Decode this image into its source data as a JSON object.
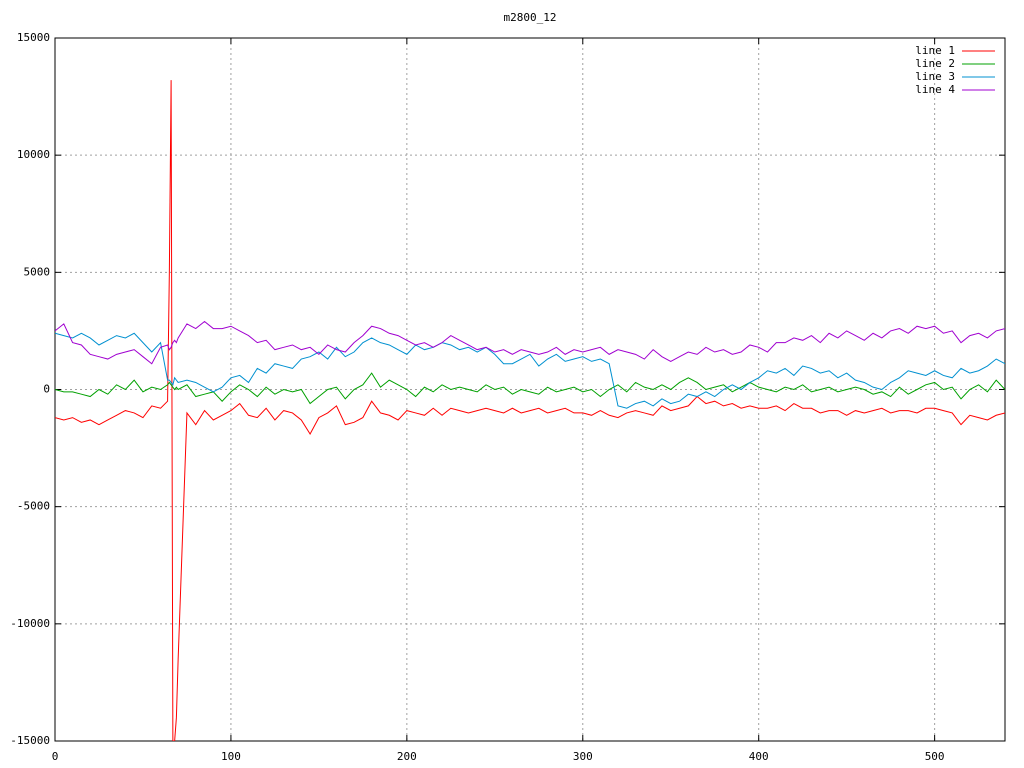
{
  "chart_data": {
    "type": "line",
    "title": "m2800_12",
    "x": [
      0,
      5,
      10,
      15,
      20,
      25,
      30,
      35,
      40,
      45,
      50,
      55,
      60,
      64,
      65,
      66,
      67,
      68,
      69,
      70,
      75,
      80,
      85,
      90,
      95,
      100,
      105,
      110,
      115,
      120,
      125,
      130,
      135,
      140,
      145,
      150,
      155,
      160,
      165,
      170,
      175,
      180,
      185,
      190,
      195,
      200,
      205,
      210,
      215,
      220,
      225,
      230,
      235,
      240,
      245,
      250,
      255,
      260,
      265,
      270,
      275,
      280,
      285,
      290,
      295,
      300,
      305,
      310,
      315,
      320,
      325,
      330,
      335,
      340,
      345,
      350,
      355,
      360,
      365,
      370,
      375,
      380,
      385,
      390,
      395,
      400,
      405,
      410,
      415,
      420,
      425,
      430,
      435,
      440,
      445,
      450,
      455,
      460,
      465,
      470,
      475,
      480,
      485,
      490,
      495,
      500,
      505,
      510,
      515,
      520,
      525,
      530,
      535,
      540
    ],
    "series": [
      {
        "name": "line 1",
        "color": "#ff0000",
        "values": [
          -1200,
          -1300,
          -1200,
          -1400,
          -1300,
          -1500,
          -1300,
          -1100,
          -900,
          -1000,
          -1200,
          -700,
          -800,
          -500,
          5000,
          13200,
          -15000,
          -15000,
          -14000,
          -11500,
          -1000,
          -1500,
          -900,
          -1300,
          -1100,
          -900,
          -600,
          -1100,
          -1200,
          -800,
          -1300,
          -900,
          -1000,
          -1300,
          -1900,
          -1200,
          -1000,
          -700,
          -1500,
          -1400,
          -1200,
          -500,
          -1000,
          -1100,
          -1300,
          -900,
          -1000,
          -1100,
          -800,
          -1100,
          -800,
          -900,
          -1000,
          -900,
          -800,
          -900,
          -1000,
          -800,
          -1000,
          -900,
          -800,
          -1000,
          -900,
          -800,
          -1000,
          -1000,
          -1100,
          -900,
          -1100,
          -1200,
          -1000,
          -900,
          -1000,
          -1100,
          -700,
          -900,
          -800,
          -700,
          -300,
          -600,
          -500,
          -700,
          -600,
          -800,
          -700,
          -800,
          -800,
          -700,
          -900,
          -600,
          -800,
          -800,
          -1000,
          -900,
          -900,
          -1100,
          -900,
          -1000,
          -900,
          -800,
          -1000,
          -900,
          -900,
          -1000,
          -800,
          -800,
          -900,
          -1000,
          -1500,
          -1100,
          -1200,
          -1300,
          -1100,
          -1000
        ]
      },
      {
        "name": "line 2",
        "color": "#00a000",
        "values": [
          0,
          -100,
          -100,
          -200,
          -300,
          0,
          -200,
          200,
          0,
          400,
          -100,
          100,
          0,
          200,
          300,
          200,
          100,
          0,
          100,
          0,
          200,
          -300,
          -200,
          -100,
          -500,
          -100,
          200,
          0,
          -300,
          100,
          -200,
          0,
          -100,
          0,
          -600,
          -300,
          0,
          100,
          -400,
          0,
          200,
          700,
          100,
          400,
          200,
          0,
          -300,
          100,
          -100,
          200,
          0,
          100,
          0,
          -100,
          200,
          0,
          100,
          -200,
          0,
          -100,
          -200,
          100,
          -100,
          0,
          100,
          -100,
          0,
          -300,
          0,
          200,
          -100,
          300,
          100,
          0,
          200,
          0,
          300,
          500,
          300,
          0,
          100,
          200,
          -100,
          100,
          300,
          100,
          0,
          -100,
          100,
          0,
          200,
          -100,
          0,
          100,
          -100,
          0,
          100,
          0,
          -200,
          -100,
          -300,
          100,
          -200,
          0,
          200,
          300,
          0,
          100,
          -400,
          0,
          200,
          -100,
          400,
          0
        ]
      },
      {
        "name": "line 3",
        "color": "#0090d0",
        "values": [
          2400,
          2300,
          2200,
          2400,
          2200,
          1900,
          2100,
          2300,
          2200,
          2400,
          2000,
          1600,
          2000,
          400,
          400,
          300,
          200,
          500,
          400,
          300,
          400,
          300,
          100,
          -100,
          100,
          500,
          600,
          300,
          900,
          700,
          1100,
          1000,
          900,
          1300,
          1400,
          1600,
          1300,
          1800,
          1400,
          1600,
          2000,
          2200,
          2000,
          1900,
          1700,
          1500,
          1900,
          1700,
          1800,
          2000,
          1900,
          1700,
          1800,
          1600,
          1800,
          1500,
          1100,
          1100,
          1300,
          1500,
          1000,
          1300,
          1500,
          1200,
          1300,
          1400,
          1200,
          1300,
          1100,
          -700,
          -800,
          -600,
          -500,
          -700,
          -400,
          -600,
          -500,
          -200,
          -300,
          -100,
          -300,
          0,
          200,
          0,
          300,
          500,
          800,
          700,
          900,
          600,
          1000,
          900,
          700,
          800,
          500,
          700,
          400,
          300,
          100,
          0,
          300,
          500,
          800,
          700,
          600,
          800,
          600,
          500,
          900,
          700,
          800,
          1000,
          1300,
          1100
        ]
      },
      {
        "name": "line 4",
        "color": "#a000d0",
        "values": [
          2500,
          2800,
          2000,
          1900,
          1500,
          1400,
          1300,
          1500,
          1600,
          1700,
          1400,
          1100,
          1800,
          1900,
          1700,
          1800,
          2000,
          2100,
          2000,
          2200,
          2800,
          2600,
          2900,
          2600,
          2600,
          2700,
          2500,
          2300,
          2000,
          2100,
          1700,
          1800,
          1900,
          1700,
          1800,
          1500,
          1900,
          1700,
          1600,
          2000,
          2300,
          2700,
          2600,
          2400,
          2300,
          2100,
          1900,
          2000,
          1800,
          2000,
          2300,
          2100,
          1900,
          1700,
          1800,
          1600,
          1700,
          1500,
          1700,
          1600,
          1500,
          1600,
          1800,
          1500,
          1700,
          1600,
          1700,
          1800,
          1500,
          1700,
          1600,
          1500,
          1300,
          1700,
          1400,
          1200,
          1400,
          1600,
          1500,
          1800,
          1600,
          1700,
          1500,
          1600,
          1900,
          1800,
          1600,
          2000,
          2000,
          2200,
          2100,
          2300,
          2000,
          2400,
          2200,
          2500,
          2300,
          2100,
          2400,
          2200,
          2500,
          2600,
          2400,
          2700,
          2600,
          2700,
          2400,
          2500,
          2000,
          2300,
          2400,
          2200,
          2500,
          2600
        ]
      }
    ],
    "xlim": [
      0,
      540
    ],
    "ylim": [
      -15000,
      15000
    ],
    "xticks": [
      0,
      100,
      200,
      300,
      400,
      500
    ],
    "yticks": [
      -15000,
      -10000,
      -5000,
      0,
      5000,
      10000,
      15000
    ],
    "grid": true,
    "legend": "top-right"
  }
}
